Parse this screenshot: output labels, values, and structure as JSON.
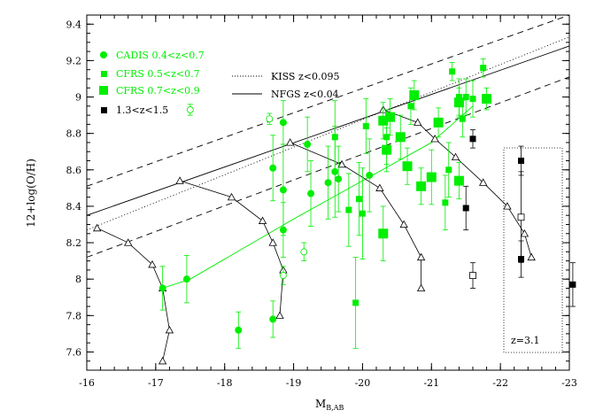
{
  "chart_data": {
    "type": "scatter",
    "xlabel": "M",
    "xlabel_subscript": "B,AB",
    "ylabel": "12+log(O/H)",
    "xlim": [
      -16,
      -23
    ],
    "ylim": [
      7.5,
      9.45
    ],
    "x_ticks": [
      -16,
      -17,
      -18,
      -19,
      -20,
      -21,
      -22,
      -23
    ],
    "y_ticks": [
      7.6,
      7.8,
      8,
      8.2,
      8.4,
      8.6,
      8.8,
      9,
      9.2,
      9.4
    ],
    "grid": false,
    "legend_placement": "top-left",
    "colors": {
      "green": "#00ee00",
      "black": "#000000"
    },
    "legend_left": [
      {
        "label": "CADIS  0.4<z<0.7",
        "marker": "circle",
        "color": "#00ee00"
      },
      {
        "label": "CFRS  0.5<z<0.7",
        "marker": "square-small",
        "color": "#00ee00"
      },
      {
        "label": "CFRS  0.7<z<0.9",
        "marker": "square-large",
        "color": "#00ee00"
      },
      {
        "label": "1.3<z<1.5",
        "marker": "square-small",
        "color": "#000000"
      }
    ],
    "legend_right": [
      {
        "label": "KISS  z<0.095",
        "line": "dotted"
      },
      {
        "label": "NFGS  z<0.04",
        "line": "solid"
      }
    ],
    "annotation": "z=3.1",
    "lines": {
      "nfgs": {
        "style": "solid",
        "points": [
          [
            -16,
            8.35
          ],
          [
            -23,
            9.28
          ]
        ]
      },
      "kiss": {
        "style": "dotted",
        "points": [
          [
            -16,
            8.27
          ],
          [
            -23,
            9.33
          ]
        ]
      },
      "upper": {
        "style": "dashed",
        "points": [
          [
            -16,
            8.51
          ],
          [
            -23,
            9.45
          ]
        ]
      },
      "lower": {
        "style": "dashed",
        "points": [
          [
            -16,
            8.12
          ],
          [
            -23,
            9.11
          ]
        ]
      },
      "cadis_trend": {
        "style": "solid",
        "color": "#00ee00",
        "points": [
          [
            -17.1,
            7.95
          ],
          [
            -17.5,
            8.0
          ],
          [
            -19,
            8.33
          ],
          [
            -21,
            8.75
          ],
          [
            -21.6,
            8.95
          ]
        ]
      }
    },
    "tracks": [
      {
        "points": [
          [
            -16.15,
            8.28
          ],
          [
            -16.6,
            8.2
          ],
          [
            -16.95,
            8.08
          ],
          [
            -17.1,
            7.95
          ],
          [
            -17.2,
            7.72
          ],
          [
            -17.1,
            7.55
          ]
        ]
      },
      {
        "points": [
          [
            -17.35,
            8.54
          ],
          [
            -18.1,
            8.45
          ],
          [
            -18.55,
            8.32
          ],
          [
            -18.7,
            8.2
          ],
          [
            -18.85,
            8.05
          ],
          [
            -18.8,
            7.8
          ]
        ]
      },
      {
        "points": [
          [
            -18.95,
            8.75
          ],
          [
            -19.7,
            8.63
          ],
          [
            -20.25,
            8.5
          ],
          [
            -20.6,
            8.3
          ],
          [
            -20.85,
            8.12
          ],
          [
            -20.85,
            7.95
          ]
        ]
      },
      {
        "points": [
          [
            -20.3,
            8.93
          ],
          [
            -20.8,
            8.86
          ],
          [
            -21.05,
            8.77
          ],
          [
            -21.35,
            8.67
          ],
          [
            -21.75,
            8.53
          ],
          [
            -22.1,
            8.4
          ],
          [
            -22.35,
            8.25
          ],
          [
            -22.45,
            8.12
          ]
        ]
      }
    ],
    "cadis": [
      {
        "x": -17.1,
        "y": 7.95,
        "err": 0.12
      },
      {
        "x": -17.45,
        "y": 8.0,
        "err": 0.13
      },
      {
        "x": -18.2,
        "y": 7.72,
        "err": 0.1
      },
      {
        "x": -18.7,
        "y": 7.78,
        "err": 0.1
      },
      {
        "x": -18.7,
        "y": 8.61,
        "err": 0.18
      },
      {
        "x": -18.85,
        "y": 8.86,
        "err": 0.12
      },
      {
        "x": -18.85,
        "y": 8.49,
        "err": 0.25
      },
      {
        "x": -18.85,
        "y": 8.27,
        "err": 0.15
      },
      {
        "x": -19.25,
        "y": 8.47,
        "err": 0.18
      },
      {
        "x": -19.5,
        "y": 8.53,
        "err": 0.2
      },
      {
        "x": -19.6,
        "y": 8.59,
        "err": 0.25
      },
      {
        "x": -19.65,
        "y": 8.55,
        "err": 0.18
      },
      {
        "x": -19.2,
        "y": 8.74,
        "err": 0.15
      },
      {
        "x": -20.1,
        "y": 8.57,
        "err": 0.2
      }
    ],
    "cfrs_small": [
      {
        "x": -19.6,
        "y": 8.78,
        "err": 0.2
      },
      {
        "x": -19.8,
        "y": 8.38,
        "err": 0.2
      },
      {
        "x": -19.9,
        "y": 7.87,
        "err": 0.25
      },
      {
        "x": -20.0,
        "y": 8.36,
        "err": 0.25
      },
      {
        "x": -19.95,
        "y": 8.44,
        "err": 0.2
      },
      {
        "x": -20.05,
        "y": 8.84,
        "err": 0.15
      },
      {
        "x": -20.35,
        "y": 8.78,
        "err": 0.15
      },
      {
        "x": -21.2,
        "y": 8.42,
        "err": 0.15
      },
      {
        "x": -21.25,
        "y": 8.6,
        "err": 0.15
      },
      {
        "x": -21.45,
        "y": 8.88,
        "err": 0.1
      },
      {
        "x": -21.5,
        "y": 9.0,
        "err": 0.1
      },
      {
        "x": -21.6,
        "y": 8.99,
        "err": 0.1
      },
      {
        "x": -21.3,
        "y": 9.14,
        "err": 0.05
      },
      {
        "x": -21.75,
        "y": 9.16,
        "err": 0.05
      },
      {
        "x": -20.7,
        "y": 8.95,
        "err": 0.1
      },
      {
        "x": -21.4,
        "y": 9.0,
        "err": 0.1
      }
    ],
    "cfrs_large": [
      {
        "x": -20.3,
        "y": 8.25,
        "err": 0.15
      },
      {
        "x": -20.4,
        "y": 8.89,
        "err": 0.1
      },
      {
        "x": -20.3,
        "y": 8.87,
        "err": 0.1
      },
      {
        "x": -20.35,
        "y": 8.71,
        "err": 0.12
      },
      {
        "x": -20.55,
        "y": 8.78,
        "err": 0.12
      },
      {
        "x": -20.65,
        "y": 8.62,
        "err": 0.1
      },
      {
        "x": -20.75,
        "y": 9.01,
        "err": 0.08
      },
      {
        "x": -20.85,
        "y": 8.51,
        "err": 0.1
      },
      {
        "x": -21.0,
        "y": 8.56,
        "err": 0.15
      },
      {
        "x": -21.1,
        "y": 8.86,
        "err": 0.08
      },
      {
        "x": -21.4,
        "y": 8.97,
        "err": 0.08
      },
      {
        "x": -21.8,
        "y": 8.99,
        "err": 0.06
      },
      {
        "x": -21.4,
        "y": 8.54,
        "err": 0.1
      }
    ],
    "open_circles": [
      {
        "x": -17.5,
        "y": 8.93,
        "err": 0.03
      },
      {
        "x": -18.65,
        "y": 8.88,
        "err": 0.03
      },
      {
        "x": -18.85,
        "y": 8.02,
        "err": 0.05
      },
      {
        "x": -19.15,
        "y": 8.15,
        "err": 0.05
      }
    ],
    "black_filled": [
      {
        "x": -21.6,
        "y": 8.77,
        "err": 0.05
      },
      {
        "x": -21.5,
        "y": 8.39,
        "err": 0.12
      },
      {
        "x": -22.3,
        "y": 8.65,
        "err": 0.08
      },
      {
        "x": -22.3,
        "y": 8.11,
        "err": 0.1
      },
      {
        "x": -23.05,
        "y": 7.97,
        "err": 0.12
      }
    ],
    "black_open": [
      {
        "x": -21.6,
        "y": 8.02,
        "err": 0.07
      },
      {
        "x": -22.3,
        "y": 8.34,
        "err": 0.25
      }
    ]
  }
}
